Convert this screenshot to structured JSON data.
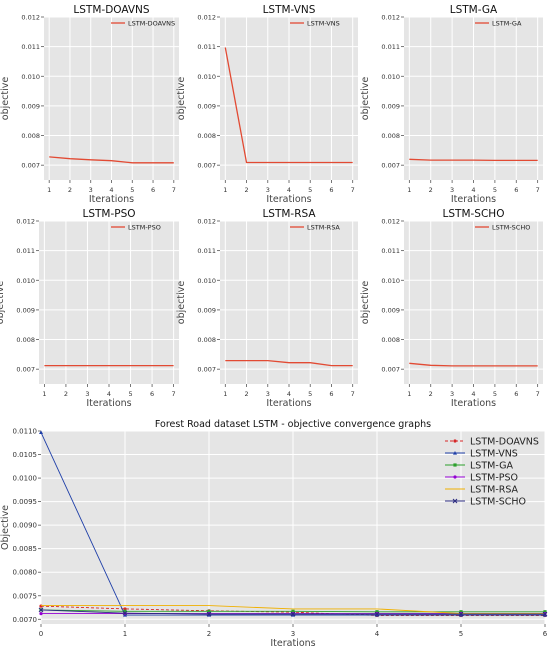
{
  "chart_data": [
    {
      "type": "line",
      "title": "LSTM-DOAVNS",
      "xlabel": "Iterations",
      "ylabel": "objective",
      "x": [
        1,
        2,
        3,
        4,
        5,
        6,
        7
      ],
      "xlim": [
        0.75,
        7.25
      ],
      "ylim": [
        0.0065,
        0.012
      ],
      "yticks": [
        "0.007",
        "0.008",
        "0.009",
        "0.010",
        "0.011",
        "0.012"
      ],
      "series": [
        {
          "name": "LSTM-DOAVNS",
          "color": "#e24a33",
          "values": [
            0.00728,
            0.00722,
            0.00718,
            0.00715,
            0.00708,
            0.00708,
            0.00708
          ]
        }
      ],
      "grid": true,
      "legend": "top-right"
    },
    {
      "type": "line",
      "title": "LSTM-VNS",
      "xlabel": "Iterations",
      "ylabel": "objective",
      "x": [
        1,
        2,
        3,
        4,
        5,
        6,
        7
      ],
      "xlim": [
        0.75,
        7.25
      ],
      "ylim": [
        0.0065,
        0.012
      ],
      "yticks": [
        "0.007",
        "0.008",
        "0.009",
        "0.010",
        "0.011",
        "0.012"
      ],
      "series": [
        {
          "name": "LSTM-VNS",
          "color": "#e24a33",
          "values": [
            0.01097,
            0.00709,
            0.00709,
            0.00709,
            0.00709,
            0.00709,
            0.00709
          ]
        }
      ],
      "grid": true,
      "legend": "top-right"
    },
    {
      "type": "line",
      "title": "LSTM-GA",
      "xlabel": "Iterations",
      "ylabel": "objective",
      "x": [
        1,
        2,
        3,
        4,
        5,
        6,
        7
      ],
      "xlim": [
        0.75,
        7.25
      ],
      "ylim": [
        0.0065,
        0.012
      ],
      "yticks": [
        "0.007",
        "0.008",
        "0.009",
        "0.010",
        "0.011",
        "0.012"
      ],
      "series": [
        {
          "name": "LSTM-GA",
          "color": "#e24a33",
          "values": [
            0.0072,
            0.00717,
            0.00717,
            0.00717,
            0.00716,
            0.00716,
            0.00716
          ]
        }
      ],
      "grid": true,
      "legend": "top-right"
    },
    {
      "type": "line",
      "title": "LSTM-PSO",
      "xlabel": "Iterations",
      "ylabel": "objective",
      "x": [
        1,
        2,
        3,
        4,
        5,
        6,
        7
      ],
      "xlim": [
        0.75,
        7.25
      ],
      "ylim": [
        0.0065,
        0.012
      ],
      "yticks": [
        "0.007",
        "0.008",
        "0.009",
        "0.010",
        "0.011",
        "0.012"
      ],
      "series": [
        {
          "name": "LSTM-PSO",
          "color": "#e24a33",
          "values": [
            0.00712,
            0.00712,
            0.00712,
            0.00712,
            0.00712,
            0.00712,
            0.00712
          ]
        }
      ],
      "grid": true,
      "legend": "top-right"
    },
    {
      "type": "line",
      "title": "LSTM-RSA",
      "xlabel": "Iterations",
      "ylabel": "objective",
      "x": [
        1,
        2,
        3,
        4,
        5,
        6,
        7
      ],
      "xlim": [
        0.75,
        7.25
      ],
      "ylim": [
        0.0065,
        0.012
      ],
      "yticks": [
        "0.007",
        "0.008",
        "0.009",
        "0.010",
        "0.011",
        "0.012"
      ],
      "series": [
        {
          "name": "LSTM-RSA",
          "color": "#e24a33",
          "values": [
            0.00729,
            0.00729,
            0.00729,
            0.00722,
            0.00722,
            0.00712,
            0.00712
          ]
        }
      ],
      "grid": true,
      "legend": "top-right"
    },
    {
      "type": "line",
      "title": "LSTM-SCHO",
      "xlabel": "Iterations",
      "ylabel": "objective",
      "x": [
        1,
        2,
        3,
        4,
        5,
        6,
        7
      ],
      "xlim": [
        0.75,
        7.25
      ],
      "ylim": [
        0.0065,
        0.012
      ],
      "yticks": [
        "0.007",
        "0.008",
        "0.009",
        "0.010",
        "0.011",
        "0.012"
      ],
      "series": [
        {
          "name": "LSTM-SCHO",
          "color": "#e24a33",
          "values": [
            0.0072,
            0.00713,
            0.00711,
            0.00711,
            0.00711,
            0.00711,
            0.00711
          ]
        }
      ],
      "grid": true,
      "legend": "top-right"
    },
    {
      "type": "line",
      "title": "Forest Road dataset LSTM -  objective convergence graphs",
      "xlabel": "Iterations",
      "ylabel": "Objective",
      "x": [
        0,
        1,
        2,
        3,
        4,
        5,
        6
      ],
      "xlim": [
        0,
        6
      ],
      "ylim": [
        0.0069,
        0.011
      ],
      "yticks": [
        "0.0070",
        "0.0075",
        "0.0080",
        "0.0085",
        "0.0090",
        "0.0095",
        "0.0100",
        "0.0105",
        "0.0110"
      ],
      "series": [
        {
          "name": "LSTM-DOAVNS",
          "color": "#d62728",
          "dashed": true,
          "marker": "circle",
          "values": [
            0.00728,
            0.00722,
            0.00718,
            0.00715,
            0.00708,
            0.00708,
            0.00708
          ]
        },
        {
          "name": "LSTM-VNS",
          "color": "#1f3fa8",
          "marker": "triangle",
          "values": [
            0.01097,
            0.00709,
            0.00709,
            0.00709,
            0.00709,
            0.00709,
            0.00709
          ]
        },
        {
          "name": "LSTM-GA",
          "color": "#2ca02c",
          "marker": "star",
          "values": [
            0.0072,
            0.00717,
            0.00717,
            0.00717,
            0.00716,
            0.00716,
            0.00716
          ]
        },
        {
          "name": "LSTM-PSO",
          "color": "#9400d3",
          "marker": "circle",
          "values": [
            0.00712,
            0.00712,
            0.00712,
            0.00712,
            0.00712,
            0.00712,
            0.00712
          ]
        },
        {
          "name": "LSTM-RSA",
          "color": "#f0b000",
          "values": [
            0.00729,
            0.00729,
            0.00729,
            0.00722,
            0.00722,
            0.00712,
            0.00712
          ]
        },
        {
          "name": "LSTM-SCHO",
          "color": "#2a2a7f",
          "marker": "x",
          "values": [
            0.0072,
            0.00713,
            0.00711,
            0.00711,
            0.00711,
            0.00711,
            0.00711
          ]
        }
      ],
      "grid": true,
      "legend": "top-right"
    }
  ]
}
